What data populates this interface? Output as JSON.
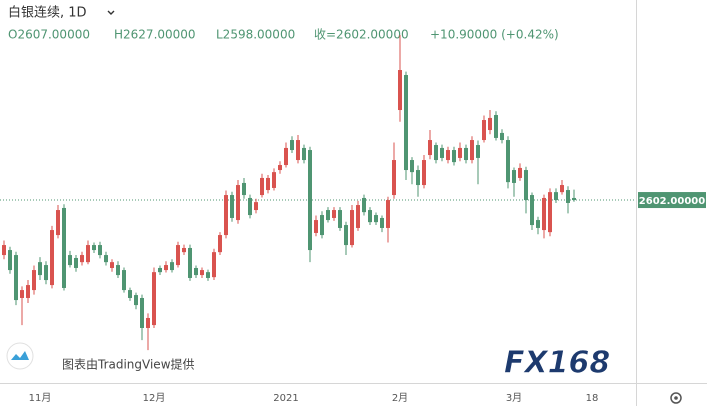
{
  "chart_data": {
    "type": "candlestick",
    "title": "白银连续, 1D",
    "header_values": [
      "O2607.00000",
      "H2627.00000",
      "L2598.00000",
      "收=2602.00000",
      "+10.90000 (+0.42%)"
    ],
    "categories": [
      null,
      null,
      null,
      null,
      null,
      null,
      "11月",
      null,
      null,
      null,
      null,
      null,
      null,
      null,
      null,
      null,
      null,
      null,
      null,
      null,
      null,
      null,
      null,
      null,
      null,
      "12月",
      null,
      null,
      null,
      null,
      null,
      null,
      null,
      null,
      null,
      null,
      null,
      null,
      null,
      null,
      null,
      null,
      null,
      null,
      null,
      null,
      null,
      "2021",
      null,
      null,
      null,
      null,
      null,
      null,
      null,
      null,
      null,
      null,
      null,
      null,
      null,
      null,
      null,
      null,
      null,
      null,
      "2月",
      null,
      null,
      null,
      null,
      null,
      null,
      null,
      null,
      null,
      null,
      null,
      null,
      null,
      null,
      null,
      null,
      null,
      null,
      "3月",
      null,
      null,
      null,
      null,
      null,
      null,
      null,
      null,
      null,
      null,
      null,
      null,
      "18"
    ],
    "open": [
      2470,
      2482,
      2470,
      2367,
      2367,
      2386,
      2453,
      2446,
      2398,
      2518,
      2583,
      2470,
      2463,
      2453,
      2453,
      2494,
      2494,
      2470,
      2439,
      2446,
      2434,
      2386,
      2374,
      2367,
      2295,
      2302,
      2439,
      2434,
      2453,
      2446,
      2477,
      2487,
      2439,
      2422,
      2429,
      2417,
      2477,
      2518,
      2614,
      2554,
      2643,
      2607,
      2578,
      2614,
      2626,
      2631,
      2674,
      2686,
      2746,
      2698,
      2727,
      2722,
      2523,
      2566,
      2578,
      2559,
      2578,
      2542,
      2494,
      2535,
      2607,
      2578,
      2566,
      2559,
      2535,
      2614,
      2818,
      2902,
      2698,
      2674,
      2638,
      2710,
      2734,
      2727,
      2698,
      2722,
      2703,
      2727,
      2698,
      2734,
      2746,
      2770,
      2806,
      2763,
      2746,
      2674,
      2655,
      2674,
      2614,
      2554,
      2530,
      2525,
      2621,
      2621,
      2626,
      2607,
      null,
      null,
      null
    ],
    "high": [
      2505,
      2490,
      2478,
      2395,
      2410,
      2445,
      2465,
      2455,
      2540,
      2590,
      2592,
      2480,
      2470,
      2478,
      2505,
      2500,
      2502,
      2478,
      2460,
      2455,
      2440,
      2392,
      2380,
      2375,
      2330,
      2440,
      2445,
      2455,
      2460,
      2502,
      2495,
      2495,
      2445,
      2440,
      2435,
      2485,
      2525,
      2625,
      2622,
      2650,
      2655,
      2615,
      2605,
      2665,
      2662,
      2678,
      2695,
      2740,
      2755,
      2758,
      2735,
      2730,
      2565,
      2575,
      2585,
      2585,
      2585,
      2550,
      2590,
      2600,
      2615,
      2585,
      2572,
      2565,
      2610,
      2740,
      2998,
      2910,
      2705,
      2685,
      2710,
      2770,
      2740,
      2735,
      2730,
      2730,
      2740,
      2735,
      2755,
      2745,
      2805,
      2818,
      2815,
      2772,
      2755,
      2680,
      2690,
      2682,
      2620,
      2562,
      2615,
      2630,
      2630,
      2650,
      2635,
      2627,
      null,
      null,
      null
    ],
    "low": [
      2460,
      2425,
      2350,
      2302,
      2355,
      2375,
      2410,
      2400,
      2390,
      2510,
      2385,
      2440,
      2430,
      2445,
      2448,
      2475,
      2462,
      2445,
      2430,
      2415,
      2380,
      2360,
      2340,
      2266,
      2242,
      2295,
      2422,
      2428,
      2428,
      2440,
      2470,
      2408,
      2415,
      2415,
      2408,
      2410,
      2470,
      2510,
      2550,
      2545,
      2605,
      2558,
      2570,
      2608,
      2618,
      2625,
      2665,
      2680,
      2715,
      2690,
      2690,
      2453,
      2515,
      2510,
      2548,
      2552,
      2528,
      2470,
      2488,
      2528,
      2565,
      2542,
      2542,
      2525,
      2500,
      2605,
      2790,
      2650,
      2640,
      2610,
      2630,
      2700,
      2690,
      2695,
      2690,
      2685,
      2695,
      2690,
      2690,
      2640,
      2740,
      2760,
      2745,
      2738,
      2630,
      2610,
      2648,
      2570,
      2530,
      2520,
      2510,
      2515,
      2595,
      2615,
      2570,
      2598,
      null,
      null,
      null
    ],
    "close": [
      2494,
      2434,
      2362,
      2386,
      2398,
      2434,
      2422,
      2410,
      2530,
      2578,
      2391,
      2446,
      2439,
      2470,
      2494,
      2482,
      2470,
      2453,
      2453,
      2422,
      2386,
      2367,
      2350,
      2295,
      2319,
      2429,
      2429,
      2446,
      2434,
      2494,
      2487,
      2415,
      2422,
      2434,
      2415,
      2477,
      2518,
      2614,
      2559,
      2638,
      2614,
      2566,
      2597,
      2655,
      2655,
      2669,
      2686,
      2727,
      2722,
      2746,
      2698,
      2482,
      2554,
      2518,
      2554,
      2578,
      2535,
      2494,
      2578,
      2590,
      2573,
      2549,
      2549,
      2535,
      2602,
      2698,
      2914,
      2674,
      2669,
      2638,
      2698,
      2746,
      2698,
      2703,
      2722,
      2693,
      2727,
      2698,
      2746,
      2703,
      2794,
      2799,
      2751,
      2746,
      2645,
      2643,
      2679,
      2602,
      2542,
      2535,
      2607,
      2621,
      2602,
      2638,
      2595,
      2602,
      null,
      null,
      null
    ],
    "up_color": "#d9534f",
    "down_color": "#4f9572",
    "ylim": [
      2175,
      3082
    ],
    "last_price": {
      "value": 2602,
      "label": "2602.00000"
    }
  },
  "watermark": "图表由TradingView提供",
  "logo": "FX168"
}
